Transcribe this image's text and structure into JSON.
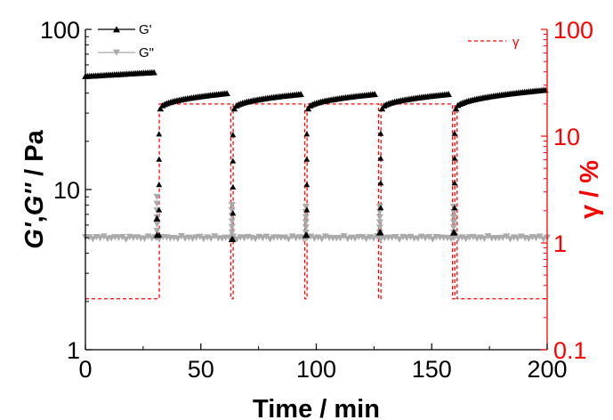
{
  "chart_data": {
    "type": "line",
    "x_axis": {
      "label": "Time / min",
      "range": [
        0,
        200
      ],
      "ticks": [
        0,
        50,
        100,
        150,
        200
      ],
      "tick_labels": [
        "0",
        "50",
        "100",
        "150",
        "200"
      ]
    },
    "y_left": {
      "label_parts": [
        "G'",
        ",",
        "G''",
        " / Pa"
      ],
      "scale": "log",
      "range": [
        1,
        100
      ],
      "ticks": [
        1,
        10,
        100
      ],
      "tick_labels": [
        "1",
        "10",
        "100"
      ]
    },
    "y_right": {
      "label": "γ / %",
      "scale": "log",
      "range": [
        0.1,
        100
      ],
      "ticks": [
        0.1,
        1,
        10,
        100
      ],
      "tick_labels": [
        "0.1",
        "1",
        "10",
        "100"
      ],
      "color": "#ff0000"
    },
    "series": [
      {
        "name": "G'",
        "marker": "triangle-up",
        "color": "#000000",
        "segments": [
          {
            "x": [
              0,
              30
            ],
            "y": [
              51,
              54
            ]
          },
          {
            "x": [
              32.5,
              62
            ],
            "y": [
              32,
              40
            ]
          },
          {
            "x": [
              64.5,
              94
            ],
            "y": [
              32,
              39.5
            ]
          },
          {
            "x": [
              96.5,
              126
            ],
            "y": [
              32,
              39.5
            ]
          },
          {
            "x": [
              128.5,
              158
            ],
            "y": [
              32,
              39.5
            ]
          },
          {
            "x": [
              160.5,
              200
            ],
            "y": [
              32,
              42
            ]
          }
        ],
        "transitions": [
          {
            "x": 31,
            "y": [
              5.2,
              6.6
            ]
          },
          {
            "x": 63.5,
            "y": 4.9
          },
          {
            "x": 95.5,
            "y": 5.2
          },
          {
            "x": 127.5,
            "y": 5.4
          },
          {
            "x": 159.5,
            "y": 5.4
          }
        ]
      },
      {
        "name": "G\"",
        "marker": "triangle-down",
        "color": "#aaaaaa",
        "baseline": {
          "x": [
            0,
            200
          ],
          "y": 5.0
        },
        "spikes": [
          {
            "x": 31,
            "y": 9.0
          },
          {
            "x": 63.5,
            "y": 8.0
          },
          {
            "x": 95.5,
            "y": 7.8
          },
          {
            "x": 127.5,
            "y": 7.8
          },
          {
            "x": 159.5,
            "y": 7.8
          }
        ]
      },
      {
        "name": "γ",
        "axis": "right",
        "style": "dashed",
        "color": "#ff0000",
        "low_value": 0.3,
        "high_value": 20,
        "high_intervals": [
          [
            32,
            63
          ],
          [
            64,
            95
          ],
          [
            96,
            127
          ],
          [
            128,
            159
          ],
          [
            160,
            161
          ]
        ]
      }
    ],
    "legend": {
      "position": "top-left",
      "entries": [
        "G'",
        "G\""
      ],
      "right_entry": "γ",
      "right_position": "top-right"
    }
  }
}
